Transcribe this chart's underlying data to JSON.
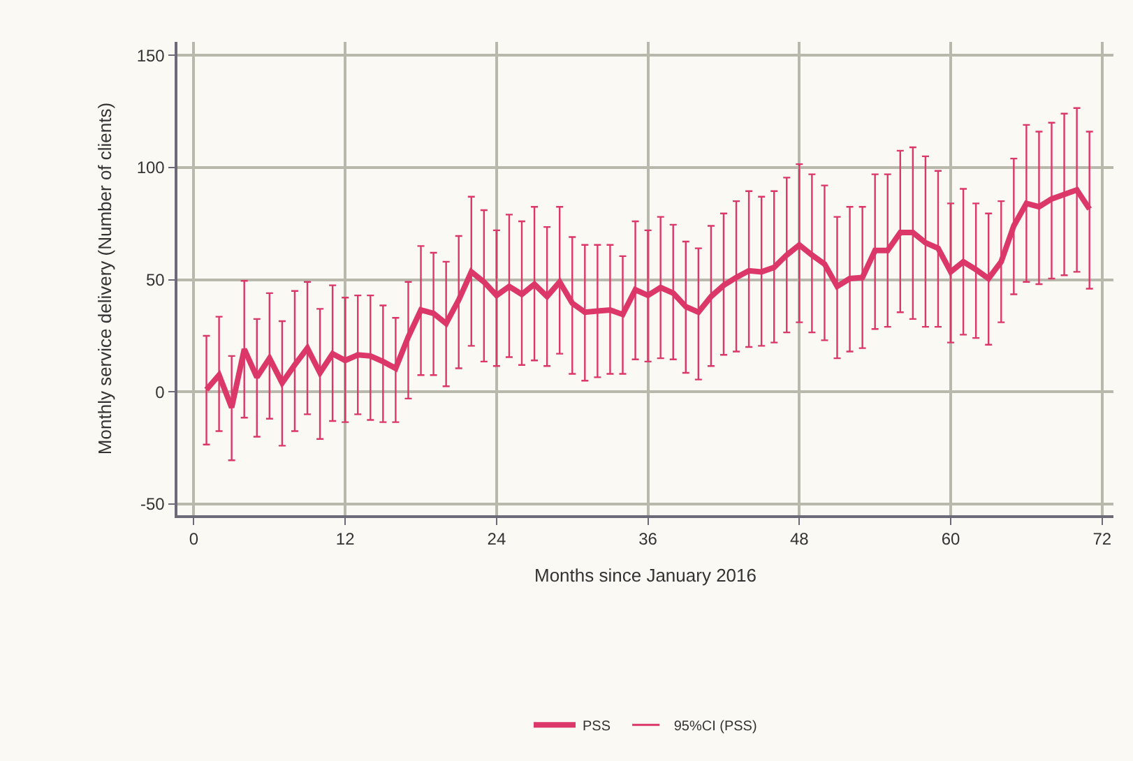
{
  "chart_data": {
    "type": "line",
    "xlabel": "Months since January 2016",
    "ylabel": "Monthly service delivery (Number of clients)",
    "x": [
      1,
      2,
      3,
      4,
      5,
      6,
      7,
      8,
      9,
      10,
      11,
      12,
      13,
      14,
      15,
      16,
      17,
      18,
      19,
      20,
      21,
      22,
      23,
      24,
      25,
      26,
      27,
      28,
      29,
      30,
      31,
      32,
      33,
      34,
      35,
      36,
      37,
      38,
      39,
      40,
      41,
      42,
      43,
      44,
      45,
      46,
      47,
      48,
      49,
      50,
      51,
      52,
      53,
      54,
      55,
      56,
      57,
      58,
      59,
      60,
      61,
      62,
      63,
      64,
      65,
      66,
      67,
      68,
      69,
      70,
      71
    ],
    "annotations": [
      "95%CI (PSS)"
    ],
    "series": [
      {
        "name": "PSS",
        "color": "#dc3769",
        "values": [
          1,
          7.5,
          -7,
          19,
          6.5,
          15,
          4,
          12,
          19.5,
          8.5,
          17,
          14,
          16.5,
          16,
          13.5,
          10.5,
          24.5,
          36.5,
          35,
          30.5,
          41,
          53.5,
          49,
          43,
          47,
          43.5,
          48,
          42.5,
          49,
          39.5,
          35.5,
          36,
          36.5,
          34.5,
          45.5,
          43,
          46.5,
          44,
          38,
          35.5,
          42.5,
          47.5,
          51,
          54,
          53.5,
          55.5,
          61,
          65.5,
          61,
          57,
          47,
          50.5,
          51,
          63,
          63,
          71,
          71,
          66.5,
          64,
          53.5,
          58,
          54.5,
          50.5,
          58,
          74,
          84,
          82.5,
          86,
          88,
          90,
          81.5
        ],
        "errors": [
          [
            -23.5,
            25
          ],
          [
            -17.5,
            33.5
          ],
          [
            -30.5,
            16
          ],
          [
            -11.5,
            49.5
          ],
          [
            -20,
            32.5
          ],
          [
            -12,
            44
          ],
          [
            -24,
            31.5
          ],
          [
            -17.5,
            45
          ],
          [
            -10,
            49
          ],
          [
            -21,
            37
          ],
          [
            -13,
            47.5
          ],
          [
            -13.5,
            42
          ],
          [
            -10,
            43
          ],
          [
            -12.5,
            43
          ],
          [
            -13.5,
            38.5
          ],
          [
            -13.5,
            33
          ],
          [
            -3,
            49
          ],
          [
            7.5,
            65
          ],
          [
            7.5,
            62
          ],
          [
            2.5,
            58
          ],
          [
            10.5,
            69.5
          ],
          [
            20.5,
            87
          ],
          [
            13.5,
            81
          ],
          [
            11.5,
            72
          ],
          [
            15.5,
            79
          ],
          [
            12,
            76
          ],
          [
            14,
            82.5
          ],
          [
            11.5,
            73.5
          ],
          [
            17,
            82.5
          ],
          [
            8,
            69
          ],
          [
            5,
            65.5
          ],
          [
            6.5,
            65.5
          ],
          [
            8,
            65.5
          ],
          [
            8,
            60.5
          ],
          [
            14.5,
            76
          ],
          [
            13.5,
            72
          ],
          [
            15,
            78
          ],
          [
            14.5,
            74.5
          ],
          [
            8.5,
            67
          ],
          [
            5.5,
            64
          ],
          [
            11.5,
            74
          ],
          [
            16.5,
            79.5
          ],
          [
            18,
            85
          ],
          [
            20,
            89.5
          ],
          [
            20.5,
            87
          ],
          [
            22,
            89.5
          ],
          [
            26.5,
            95.5
          ],
          [
            31,
            101.5
          ],
          [
            26.5,
            97
          ],
          [
            23,
            92
          ],
          [
            15,
            78
          ],
          [
            18,
            82.5
          ],
          [
            19.5,
            82.5
          ],
          [
            28,
            97
          ],
          [
            29,
            97
          ],
          [
            35.5,
            107.5
          ],
          [
            32.5,
            109
          ],
          [
            29,
            105
          ],
          [
            29,
            98.5
          ],
          [
            22,
            84
          ],
          [
            25.5,
            90.5
          ],
          [
            24,
            84
          ],
          [
            21,
            79.5
          ],
          [
            31,
            85
          ],
          [
            43.5,
            104
          ],
          [
            49,
            119
          ],
          [
            48,
            116
          ],
          [
            50.5,
            120
          ],
          [
            52,
            124
          ],
          [
            53.5,
            126.5
          ],
          [
            46,
            116
          ]
        ]
      }
    ],
    "xlim": [
      -1.3,
      72.9
    ],
    "xticks": [
      0,
      12,
      24,
      36,
      48,
      60,
      72
    ],
    "ylim": [
      -55,
      156
    ],
    "yticks": [
      -50,
      0,
      50,
      100,
      150
    ],
    "grid": true,
    "legend": "bottom",
    "marker": "none",
    "line_style": "solid"
  }
}
